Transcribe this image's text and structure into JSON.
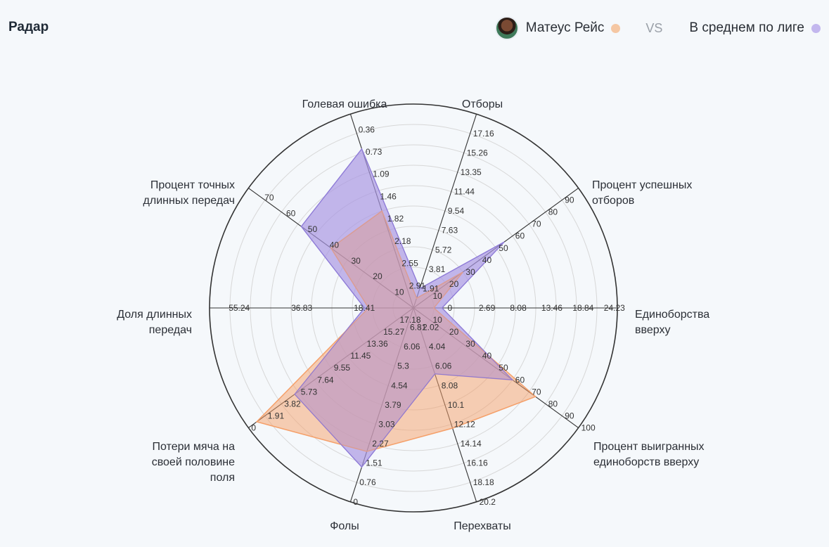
{
  "header": {
    "title": "Радар",
    "player_name": "Матеус Рейс",
    "vs_label": "VS",
    "league_label": "В среднем по лиге"
  },
  "colors": {
    "player": "#f5a06a",
    "league": "#a895e3",
    "axis": "#333333",
    "grid": "#d7d7d7"
  },
  "chart_data": {
    "type": "radar",
    "title": "Радар",
    "axes": [
      {
        "label": "Отборы",
        "ticks": [
          "1.91",
          "3.81",
          "5.72",
          "7.63",
          "9.54",
          "11.44",
          "13.35",
          "15.26",
          "17.16"
        ]
      },
      {
        "label": "Процент успешных отборов",
        "ticks": [
          "10",
          "20",
          "30",
          "40",
          "50",
          "60",
          "70",
          "80",
          "90"
        ]
      },
      {
        "label": "Единоборства вверху",
        "ticks": [
          "0",
          "2.69",
          "8.08",
          "13.46",
          "18.84",
          "24.23"
        ]
      },
      {
        "label": "Процент выигранных единоборств вверху",
        "ticks": [
          "10",
          "20",
          "30",
          "40",
          "50",
          "60",
          "70",
          "80",
          "90",
          "100"
        ]
      },
      {
        "label": "Перехваты",
        "ticks": [
          "2.02",
          "4.04",
          "6.06",
          "8.08",
          "10.1",
          "12.12",
          "14.14",
          "16.16",
          "18.18",
          "20.2"
        ]
      },
      {
        "label": "Фолы",
        "ticks": [
          "6.81",
          "6.06",
          "5.3",
          "4.54",
          "3.79",
          "3.03",
          "2.27",
          "1.51",
          "0.76",
          "0"
        ]
      },
      {
        "label": "Потери мяча на своей половине поля",
        "ticks": [
          "17.18",
          "15.27",
          "13.36",
          "11.45",
          "9.55",
          "7.64",
          "5.73",
          "3.82",
          "1.91",
          "0"
        ]
      },
      {
        "label": "Доля длинных передач",
        "ticks": [
          "18.41",
          "36.83",
          "55.24"
        ]
      },
      {
        "label": "Процент точных длинных передач",
        "ticks": [
          "10",
          "20",
          "30",
          "40",
          "50",
          "60",
          "70"
        ]
      },
      {
        "label": "Голевая ошибка",
        "ticks": [
          "2.91",
          "2.55",
          "2.18",
          "1.82",
          "1.46",
          "1.09",
          "0.73",
          "0.36"
        ]
      }
    ],
    "series": [
      {
        "name": "Матеус Рейс",
        "values": [
          0.05,
          0.3,
          0.1,
          0.74,
          0.62,
          0.74,
          0.95,
          0.22,
          0.5,
          0.5
        ]
      },
      {
        "name": "В среднем по лиге",
        "values": [
          0.1,
          0.55,
          0.14,
          0.6,
          0.34,
          0.82,
          0.72,
          0.24,
          0.68,
          0.82
        ]
      }
    ],
    "max": 1,
    "grid_rings": 10
  }
}
